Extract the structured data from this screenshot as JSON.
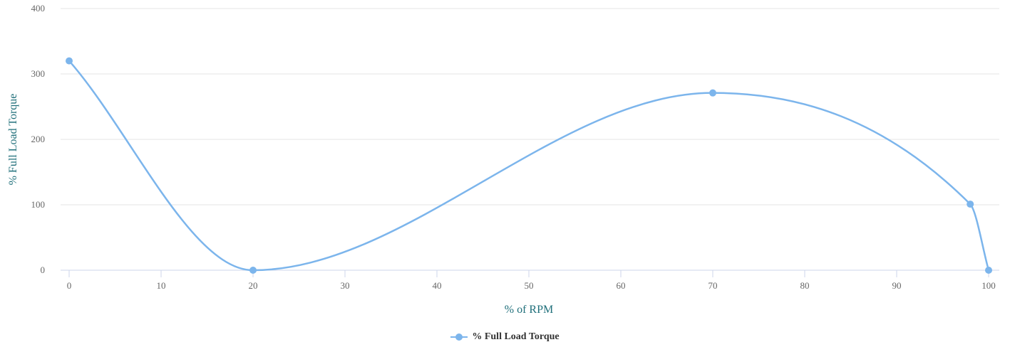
{
  "chart_data": {
    "type": "line",
    "xlabel": "% of RPM",
    "ylabel": "% Full Load Torque",
    "xlim": [
      0,
      100
    ],
    "ylim": [
      0,
      400
    ],
    "x_ticks": [
      0,
      10,
      20,
      30,
      40,
      50,
      60,
      70,
      80,
      90,
      100
    ],
    "y_ticks": [
      0,
      100,
      200,
      300,
      400
    ],
    "grid": true,
    "legend_position": "bottom-center",
    "series": [
      {
        "name": "% Full Load Torque",
        "color": "#7cb5ec",
        "points": [
          {
            "x": 0,
            "y": 320
          },
          {
            "x": 20,
            "y": 0
          },
          {
            "x": 70,
            "y": 271
          },
          {
            "x": 98,
            "y": 101
          },
          {
            "x": 100,
            "y": 0
          }
        ]
      }
    ]
  }
}
